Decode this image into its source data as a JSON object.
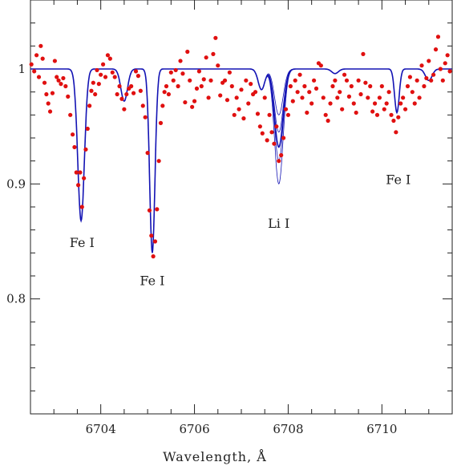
{
  "chart_data": {
    "type": "line+scatter",
    "xlabel": "Wavelength, Å",
    "ylabel": "",
    "xlim": [
      6702.5,
      6711.5
    ],
    "ylim": [
      0.7,
      1.06
    ],
    "xticks": [
      6704,
      6706,
      6708,
      6710
    ],
    "xtick_labels": [
      "6704",
      "6706",
      "6708",
      "6710"
    ],
    "yticks": [
      0.8,
      0.9,
      1.0
    ],
    "ytick_labels": [
      "0.8",
      "0.9",
      "1"
    ],
    "grid": false,
    "colors": {
      "model": "#1414b4",
      "observed": "#e01010"
    },
    "annotations": [
      {
        "text": "Fe I",
        "x": 6703.6,
        "y": 0.845
      },
      {
        "text": "Fe I",
        "x": 6705.1,
        "y": 0.812
      },
      {
        "text": "Li I",
        "x": 6707.8,
        "y": 0.862
      },
      {
        "text": "Fe I",
        "x": 6710.35,
        "y": 0.9
      }
    ],
    "model_lines": [
      {
        "x": 6703.58,
        "depth": 0.132,
        "width": 0.1
      },
      {
        "x": 6704.5,
        "depth": 0.028,
        "width": 0.1
      },
      {
        "x": 6705.1,
        "depth": 0.16,
        "width": 0.08
      },
      {
        "x": 6707.43,
        "depth": 0.018,
        "width": 0.1
      },
      {
        "x": 6709.0,
        "depth": 0.004,
        "width": 0.1
      },
      {
        "x": 6710.32,
        "depth": 0.038,
        "width": 0.07
      },
      {
        "x": 6711.0,
        "depth": 0.01,
        "width": 0.1
      }
    ],
    "li_depths": [
      0.04,
      0.055,
      0.068,
      0.08,
      0.1
    ],
    "li_center": 6707.8,
    "li_width": 0.13,
    "observed": [
      [
        6702.52,
        1.004
      ],
      [
        6702.58,
        0.998
      ],
      [
        6702.63,
        1.012
      ],
      [
        6702.68,
        0.993
      ],
      [
        6702.72,
        1.02
      ],
      [
        6702.76,
        1.009
      ],
      [
        6702.8,
        0.988
      ],
      [
        6702.84,
        0.978
      ],
      [
        6702.88,
        0.97
      ],
      [
        6702.92,
        0.963
      ],
      [
        6702.97,
        0.979
      ],
      [
        6703.02,
        1.007
      ],
      [
        6703.06,
        0.993
      ],
      [
        6703.1,
        0.99
      ],
      [
        6703.15,
        0.987
      ],
      [
        6703.2,
        0.992
      ],
      [
        6703.25,
        0.985
      ],
      [
        6703.3,
        0.976
      ],
      [
        6703.35,
        0.96
      ],
      [
        6703.4,
        0.943
      ],
      [
        6703.44,
        0.932
      ],
      [
        6703.48,
        0.91
      ],
      [
        6703.52,
        0.899
      ],
      [
        6703.56,
        0.91
      ],
      [
        6703.6,
        0.88
      ],
      [
        6703.64,
        0.905
      ],
      [
        6703.68,
        0.93
      ],
      [
        6703.72,
        0.948
      ],
      [
        6703.76,
        0.968
      ],
      [
        6703.8,
        0.981
      ],
      [
        6703.84,
        0.988
      ],
      [
        6703.88,
        0.978
      ],
      [
        6703.92,
        0.999
      ],
      [
        6703.96,
        0.987
      ],
      [
        6704.0,
        0.995
      ],
      [
        6704.05,
        1.004
      ],
      [
        6704.1,
        0.993
      ],
      [
        6704.15,
        1.012
      ],
      [
        6704.2,
        1.009
      ],
      [
        6704.25,
        0.997
      ],
      [
        6704.3,
        0.993
      ],
      [
        6704.35,
        0.978
      ],
      [
        6704.4,
        0.985
      ],
      [
        6704.45,
        0.974
      ],
      [
        6704.5,
        0.965
      ],
      [
        6704.55,
        0.978
      ],
      [
        6704.6,
        0.983
      ],
      [
        6704.65,
        0.985
      ],
      [
        6704.7,
        0.979
      ],
      [
        6704.75,
        0.998
      ],
      [
        6704.8,
        0.994
      ],
      [
        6704.85,
        0.981
      ],
      [
        6704.9,
        0.968
      ],
      [
        6704.95,
        0.958
      ],
      [
        6705.0,
        0.927
      ],
      [
        6705.04,
        0.877
      ],
      [
        6705.08,
        0.855
      ],
      [
        6705.12,
        0.837
      ],
      [
        6705.16,
        0.85
      ],
      [
        6705.2,
        0.878
      ],
      [
        6705.24,
        0.92
      ],
      [
        6705.28,
        0.953
      ],
      [
        6705.32,
        0.968
      ],
      [
        6705.36,
        0.98
      ],
      [
        6705.4,
        0.985
      ],
      [
        6705.45,
        0.978
      ],
      [
        6705.5,
        0.997
      ],
      [
        6705.55,
        0.99
      ],
      [
        6705.6,
        0.999
      ],
      [
        6705.65,
        0.985
      ],
      [
        6705.7,
        1.007
      ],
      [
        6705.75,
        0.996
      ],
      [
        6705.8,
        0.971
      ],
      [
        6705.85,
        1.015
      ],
      [
        6705.9,
        0.99
      ],
      [
        6705.95,
        0.967
      ],
      [
        6706.0,
        0.972
      ],
      [
        6706.05,
        0.983
      ],
      [
        6706.1,
        0.998
      ],
      [
        6706.15,
        0.985
      ],
      [
        6706.2,
        0.991
      ],
      [
        6706.25,
        1.01
      ],
      [
        6706.3,
        0.975
      ],
      [
        6706.35,
        0.99
      ],
      [
        6706.4,
        1.013
      ],
      [
        6706.45,
        1.027
      ],
      [
        6706.5,
        1.003
      ],
      [
        6706.55,
        0.977
      ],
      [
        6706.6,
        0.988
      ],
      [
        6706.65,
        0.99
      ],
      [
        6706.7,
        0.973
      ],
      [
        6706.75,
        0.997
      ],
      [
        6706.8,
        0.985
      ],
      [
        6706.85,
        0.96
      ],
      [
        6706.9,
        0.975
      ],
      [
        6706.95,
        0.965
      ],
      [
        6707.0,
        0.982
      ],
      [
        6707.05,
        0.957
      ],
      [
        6707.1,
        0.99
      ],
      [
        6707.15,
        0.97
      ],
      [
        6707.2,
        0.987
      ],
      [
        6707.25,
        0.978
      ],
      [
        6707.3,
        0.98
      ],
      [
        6707.35,
        0.961
      ],
      [
        6707.4,
        0.95
      ],
      [
        6707.45,
        0.944
      ],
      [
        6707.5,
        0.975
      ],
      [
        6707.55,
        0.938
      ],
      [
        6707.6,
        0.96
      ],
      [
        6707.65,
        0.945
      ],
      [
        6707.7,
        0.935
      ],
      [
        6707.75,
        0.95
      ],
      [
        6707.8,
        0.92
      ],
      [
        6707.85,
        0.925
      ],
      [
        6707.9,
        0.94
      ],
      [
        6707.95,
        0.965
      ],
      [
        6708.0,
        0.96
      ],
      [
        6708.05,
        0.985
      ],
      [
        6708.1,
        0.972
      ],
      [
        6708.15,
        0.99
      ],
      [
        6708.2,
        0.98
      ],
      [
        6708.25,
        0.995
      ],
      [
        6708.3,
        0.975
      ],
      [
        6708.35,
        0.985
      ],
      [
        6708.4,
        0.962
      ],
      [
        6708.45,
        0.98
      ],
      [
        6708.5,
        0.97
      ],
      [
        6708.55,
        0.99
      ],
      [
        6708.6,
        0.983
      ],
      [
        6708.65,
        1.005
      ],
      [
        6708.7,
        1.003
      ],
      [
        6708.75,
        0.975
      ],
      [
        6708.8,
        0.96
      ],
      [
        6708.85,
        0.955
      ],
      [
        6708.9,
        0.97
      ],
      [
        6708.95,
        0.985
      ],
      [
        6709.0,
        0.99
      ],
      [
        6709.05,
        0.975
      ],
      [
        6709.1,
        0.98
      ],
      [
        6709.15,
        0.965
      ],
      [
        6709.2,
        0.995
      ],
      [
        6709.25,
        0.99
      ],
      [
        6709.3,
        0.976
      ],
      [
        6709.35,
        0.985
      ],
      [
        6709.4,
        0.97
      ],
      [
        6709.45,
        0.962
      ],
      [
        6709.5,
        0.99
      ],
      [
        6709.55,
        0.978
      ],
      [
        6709.6,
        1.013
      ],
      [
        6709.65,
        0.988
      ],
      [
        6709.7,
        0.975
      ],
      [
        6709.75,
        0.985
      ],
      [
        6709.8,
        0.963
      ],
      [
        6709.85,
        0.97
      ],
      [
        6709.9,
        0.96
      ],
      [
        6709.95,
        0.975
      ],
      [
        6710.0,
        0.985
      ],
      [
        6710.05,
        0.965
      ],
      [
        6710.1,
        0.97
      ],
      [
        6710.15,
        0.98
      ],
      [
        6710.2,
        0.96
      ],
      [
        6710.25,
        0.955
      ],
      [
        6710.3,
        0.945
      ],
      [
        6710.35,
        0.958
      ],
      [
        6710.4,
        0.97
      ],
      [
        6710.45,
        0.975
      ],
      [
        6710.5,
        0.965
      ],
      [
        6710.55,
        0.985
      ],
      [
        6710.6,
        0.993
      ],
      [
        6710.65,
        0.98
      ],
      [
        6710.7,
        0.97
      ],
      [
        6710.75,
        0.99
      ],
      [
        6710.8,
        0.975
      ],
      [
        6710.85,
        1.003
      ],
      [
        6710.9,
        0.985
      ],
      [
        6710.95,
        0.992
      ],
      [
        6711.0,
        1.007
      ],
      [
        6711.05,
        0.99
      ],
      [
        6711.1,
        0.995
      ],
      [
        6711.15,
        1.017
      ],
      [
        6711.2,
        1.028
      ],
      [
        6711.25,
        1.0
      ],
      [
        6711.3,
        0.99
      ],
      [
        6711.35,
        1.005
      ],
      [
        6711.4,
        1.012
      ],
      [
        6711.45,
        0.998
      ]
    ]
  }
}
